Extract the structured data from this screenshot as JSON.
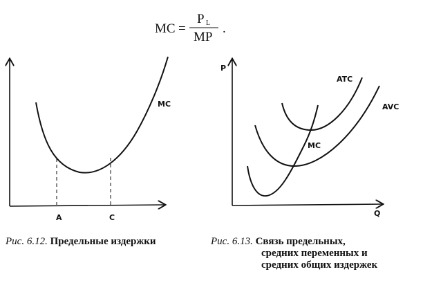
{
  "formula": {
    "lhs": "MC",
    "eq": "=",
    "numerator": "P",
    "numerator_sub": "L",
    "denominator": "MP",
    "end": "."
  },
  "figure_6_12": {
    "y_axis_label": "",
    "x_ticks": [
      "A",
      "C"
    ],
    "curve_label": "MC",
    "caption_prefix": "Рис. 6.12.",
    "caption_text": "Предельные издержки"
  },
  "figure_6_13": {
    "y_axis_label": "P",
    "x_axis_label": "Q",
    "curve_labels": {
      "atc": "ATC",
      "avc": "AVC",
      "mc": "MC"
    },
    "caption_prefix": "Рис. 6.13.",
    "caption_lines": [
      "Связь предельных,",
      "средних переменных и",
      "средних общих издержек"
    ]
  }
}
